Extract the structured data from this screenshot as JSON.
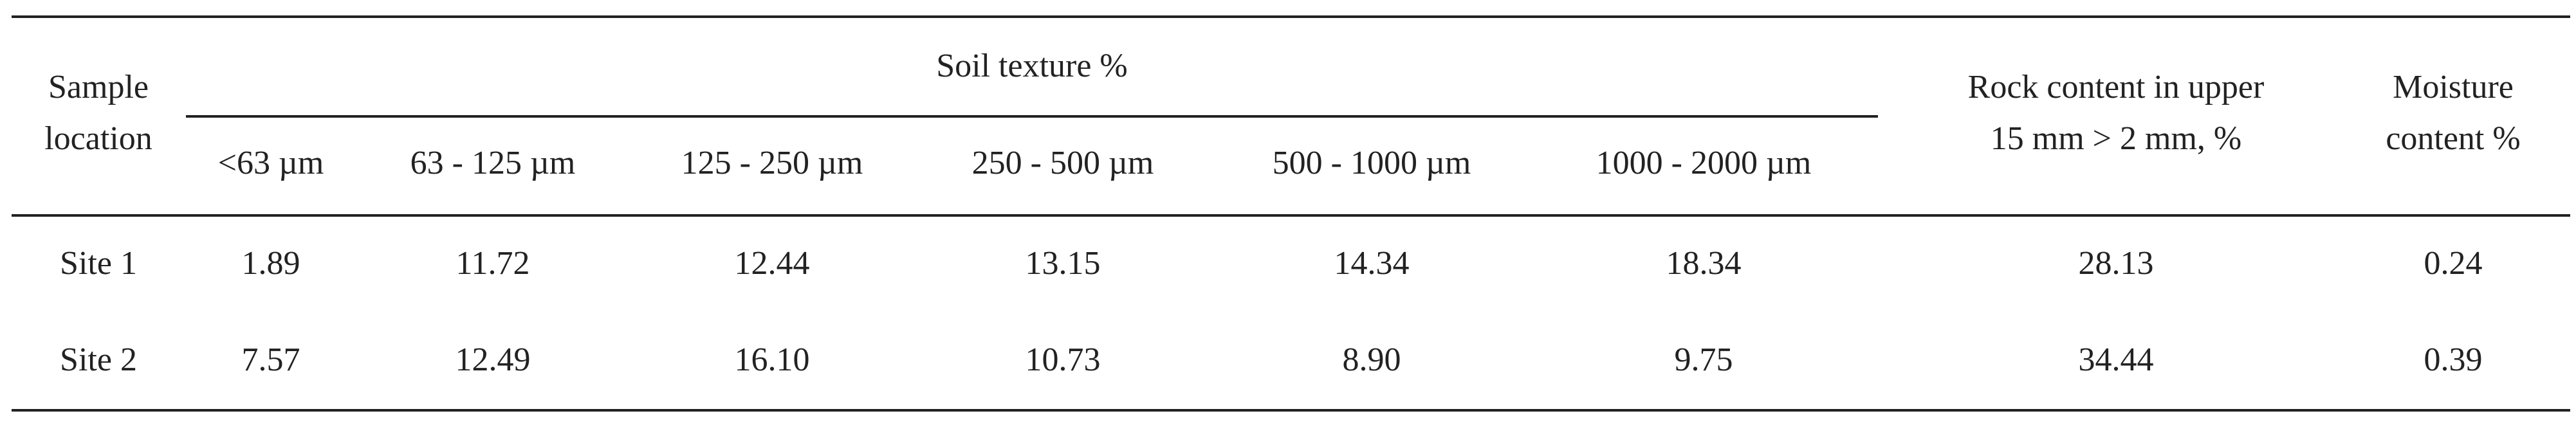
{
  "table": {
    "header": {
      "sample_location": [
        "Sample",
        "location"
      ],
      "soil_texture": "Soil texture %",
      "fractions": [
        "<63 µm",
        "63 - 125 µm",
        "125 - 250 µm",
        "250 - 500 µm",
        "500 - 1000 µm",
        "1000 - 2000 µm"
      ],
      "rock_content": [
        "Rock content in upper",
        "15 mm > 2 mm, %"
      ],
      "moisture": [
        "Moisture",
        "content %"
      ]
    },
    "rows": [
      [
        "Site 1",
        "1.89",
        "11.72",
        "12.44",
        "13.15",
        "14.34",
        "18.34",
        "28.13",
        "0.24"
      ],
      [
        "Site 2",
        "7.57",
        "12.49",
        "16.10",
        "10.73",
        "8.90",
        "9.75",
        "34.44",
        "0.39"
      ]
    ]
  }
}
